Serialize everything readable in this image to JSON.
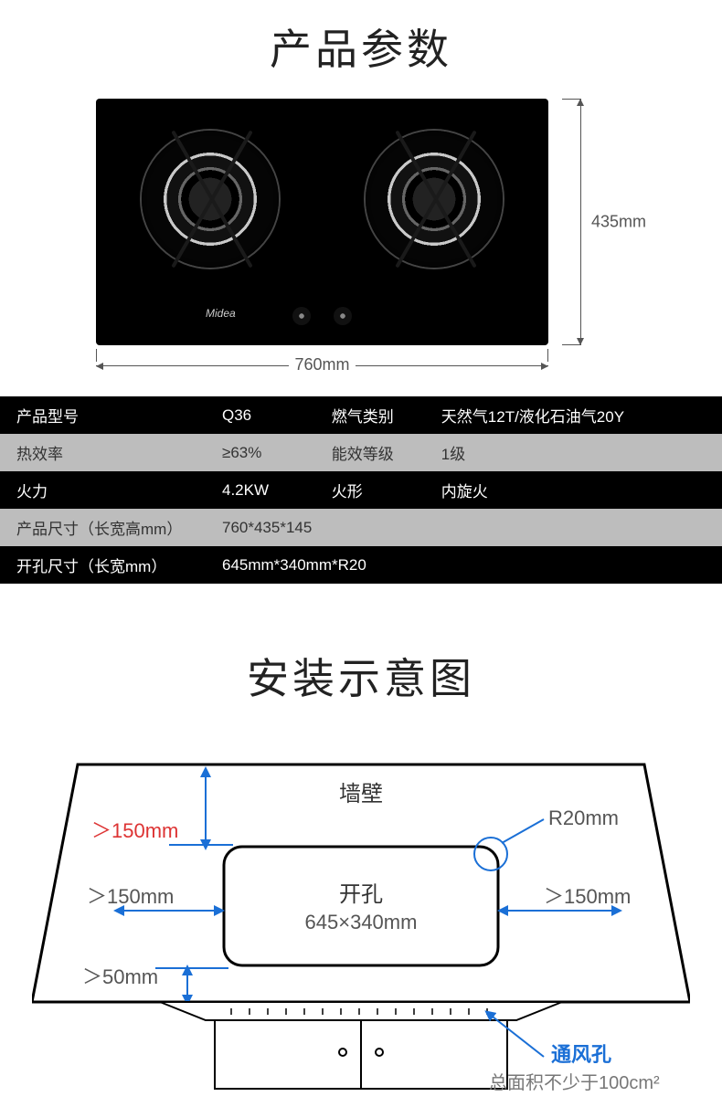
{
  "titles": {
    "specs": "产品参数",
    "install": "安装示意图"
  },
  "brand": "Midea",
  "dimensions": {
    "width_label": "760mm",
    "height_label": "435mm"
  },
  "spec_rows": [
    {
      "style": "dark",
      "c1": "产品型号",
      "c2": "Q36",
      "c3": "燃气类别",
      "c4": "天然气12T/液化石油气20Y"
    },
    {
      "style": "light",
      "c1": "热效率",
      "c2": "≥63%",
      "c3": "能效等级",
      "c4": "1级"
    },
    {
      "style": "dark",
      "c1": "火力",
      "c2": "4.2KW",
      "c3": "火形",
      "c4": "内旋火"
    },
    {
      "style": "light",
      "c1": "产品尺寸（长宽高mm）",
      "c2": "760*435*145",
      "c3": "",
      "c4": ""
    },
    {
      "style": "dark",
      "c1": "开孔尺寸（长宽mm）",
      "c2": "645mm*340mm*R20",
      "c3": "",
      "c4": ""
    }
  ],
  "install": {
    "wall_label": "墙壁",
    "cutout_label": "开孔",
    "cutout_size": "645×340mm",
    "radius_label": "R20mm",
    "gap_top": "＞150mm",
    "gap_left": "＞150mm",
    "gap_right": "＞150mm",
    "gap_front": "＞50mm",
    "vent_label": "通风孔",
    "vent_note": "总面积不少于100cm²",
    "colors": {
      "line": "#000000",
      "dim": "#1a6fd6",
      "text": "#666666",
      "fill": "#ffffff"
    }
  }
}
